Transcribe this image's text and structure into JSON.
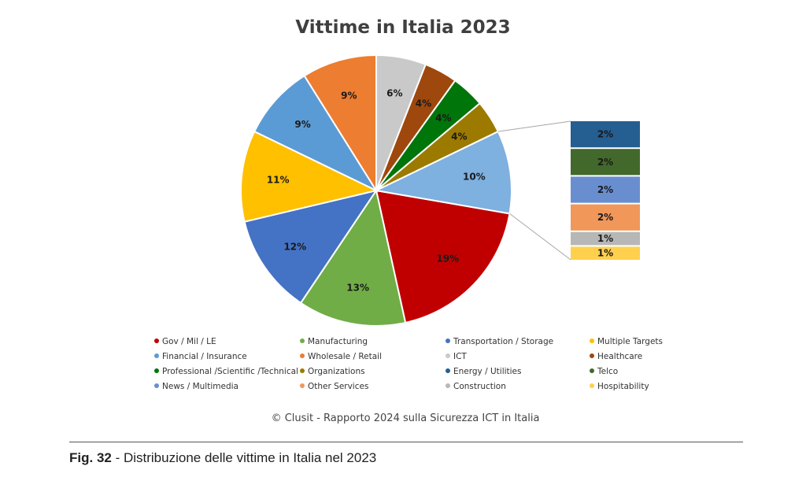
{
  "chart_data": {
    "type": "pie",
    "title": "Vittime in Italia 2023",
    "slices": [
      {
        "label": "Gov / Mil / LE",
        "value": 19,
        "text": "19%",
        "color": "#c00000"
      },
      {
        "label": "Manufacturing",
        "value": 13,
        "text": "13%",
        "color": "#70ad47"
      },
      {
        "label": "Transportation / Storage",
        "value": 12,
        "text": "12%",
        "color": "#4472c4"
      },
      {
        "label": "Multiple Targets",
        "value": 11,
        "text": "11%",
        "color": "#ffc000"
      },
      {
        "label": "Financial / Insurance",
        "value": 9,
        "text": "9%",
        "color": "#5b9bd5"
      },
      {
        "label": "Wholesale / Retail",
        "value": 9,
        "text": "9%",
        "color": "#ed7d31"
      },
      {
        "label": "ICT",
        "value": 6,
        "text": "6%",
        "color": "#c9c9c9"
      },
      {
        "label": "Healthcare",
        "value": 4,
        "text": "4%",
        "color": "#9e480e"
      },
      {
        "label": "Professional /Scientific /Technical",
        "value": 4,
        "text": "4%",
        "color": "#00750a"
      },
      {
        "label": "Organizations",
        "value": 4,
        "text": "4%",
        "color": "#9c7a00"
      },
      {
        "label": "Energy / Utilities",
        "value": 10,
        "text": "10%",
        "color": "#7eb0e0",
        "breakdown": true
      }
    ],
    "breakdown": [
      {
        "label": "Energy / Utilities",
        "value": 2,
        "text": "2%",
        "color": "#255e91"
      },
      {
        "label": "Telco",
        "value": 2,
        "text": "2%",
        "color": "#43682b"
      },
      {
        "label": "News / Multimedia",
        "value": 2,
        "text": "2%",
        "color": "#698ed0"
      },
      {
        "label": "Other Services",
        "value": 2,
        "text": "2%",
        "color": "#f1975a"
      },
      {
        "label": "Construction",
        "value": 1,
        "text": "1%",
        "color": "#b7b7b7"
      },
      {
        "label": "Hospitability",
        "value": 1,
        "text": "1%",
        "color": "#ffd04d"
      }
    ],
    "legend": [
      {
        "label": "Gov / Mil / LE",
        "color": "#c00000"
      },
      {
        "label": "Manufacturing",
        "color": "#70ad47"
      },
      {
        "label": "Transportation / Storage",
        "color": "#4472c4"
      },
      {
        "label": "Multiple Targets",
        "color": "#ffc000"
      },
      {
        "label": "Financial / Insurance",
        "color": "#5b9bd5"
      },
      {
        "label": "Wholesale / Retail",
        "color": "#ed7d31"
      },
      {
        "label": "ICT",
        "color": "#c9c9c9"
      },
      {
        "label": "Healthcare",
        "color": "#9e480e"
      },
      {
        "label": "Professional /Scientific /Technical",
        "color": "#00750a"
      },
      {
        "label": "Organizations",
        "color": "#9c7a00"
      },
      {
        "label": "Energy / Utilities",
        "color": "#255e91"
      },
      {
        "label": "Telco",
        "color": "#43682b"
      },
      {
        "label": "News / Multimedia",
        "color": "#698ed0"
      },
      {
        "label": "Other Services",
        "color": "#f1975a"
      },
      {
        "label": "Construction",
        "color": "#b7b7b7"
      },
      {
        "label": "Hospitability",
        "color": "#ffd04d"
      }
    ],
    "legend_placement": "bottom"
  },
  "credit": "© Clusit - Rapporto 2024 sulla Sicurezza ICT in Italia",
  "caption": {
    "fig": "Fig. 32",
    "text": " - Distribuzione delle vittime in Italia nel 2023"
  }
}
